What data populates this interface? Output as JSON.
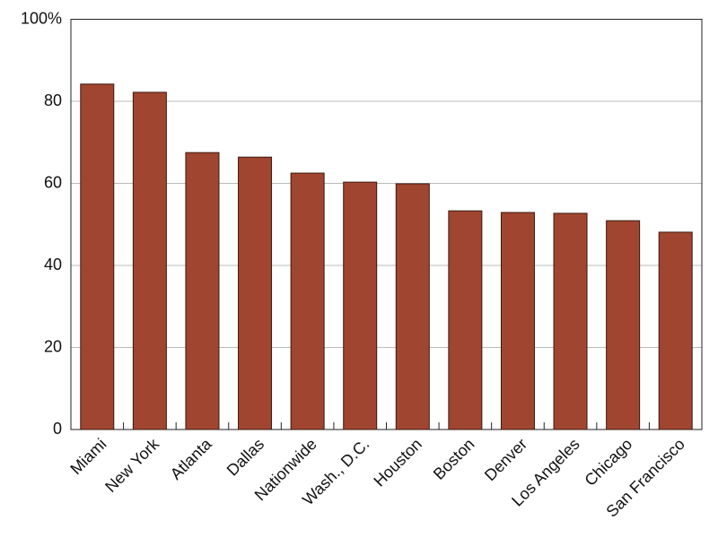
{
  "chart_data": {
    "type": "bar",
    "categories": [
      "Miami",
      "New York",
      "Atlanta",
      "Dallas",
      "Nationwide",
      "Wash., D.C.",
      "Houston",
      "Boston",
      "Denver",
      "Los Angeles",
      "Chicago",
      "San Francisco"
    ],
    "values": [
      84.2,
      82.2,
      67.5,
      66.4,
      62.5,
      60.3,
      59.9,
      53.3,
      52.9,
      52.7,
      50.9,
      48.1
    ],
    "color": "#a0452f",
    "ylim": [
      0,
      100
    ],
    "yticks": [
      0,
      20,
      40,
      60,
      80,
      {
        "value": 100,
        "label": "100%"
      }
    ],
    "grid": true
  }
}
